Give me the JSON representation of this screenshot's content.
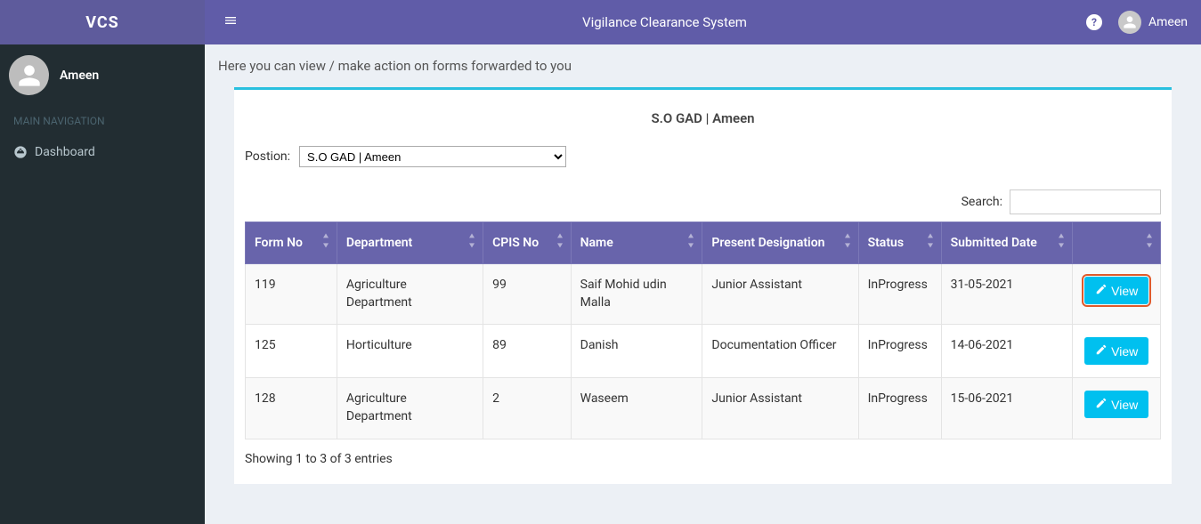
{
  "brand": "VCS",
  "user_name": "Ameen",
  "nav_header": "MAIN NAVIGATION",
  "nav": {
    "dashboard": "Dashboard"
  },
  "topbar": {
    "title": "Vigilance Clearance System",
    "help": "?",
    "user": "Ameen"
  },
  "subtitle": "Here you can view / make action on forms forwarded to you",
  "panel": {
    "title": "S.O GAD | Ameen",
    "position_label": "Postion:",
    "position_value": "S.O GAD | Ameen"
  },
  "search_label": "Search:",
  "table": {
    "columns": {
      "form_no": "Form No",
      "department": "Department",
      "cpis_no": "CPIS No",
      "name": "Name",
      "designation": "Present Designation",
      "status": "Status",
      "submitted": "Submitted Date",
      "action": ""
    },
    "col_widths": {
      "form_no": "94px",
      "department": "150px",
      "cpis_no": "90px",
      "name": "135px",
      "designation": "160px",
      "status": "85px",
      "submitted": "135px",
      "action": "90px"
    },
    "rows": [
      {
        "form_no": "119",
        "department": "Agriculture Department",
        "cpis_no": "99",
        "name": "Saif Mohid udin Malla",
        "designation": "Junior Assistant",
        "status": "InProgress",
        "submitted": "31-05-2021",
        "highlight": true
      },
      {
        "form_no": "125",
        "department": "Horticulture",
        "cpis_no": "89",
        "name": "Danish",
        "designation": "Documentation Officer",
        "status": "InProgress",
        "submitted": "14-06-2021",
        "highlight": false
      },
      {
        "form_no": "128",
        "department": "Agriculture Department",
        "cpis_no": "2",
        "name": "Waseem",
        "designation": "Junior Assistant",
        "status": "InProgress",
        "submitted": "15-06-2021",
        "highlight": false
      }
    ],
    "view_label": "View",
    "info": "Showing 1 to 3 of 3 entries"
  },
  "colors": {
    "brand_bg": "#5e5b9c",
    "topbar_bg": "#605ca8",
    "th_bg": "#6864ab",
    "panel_accent": "#29c0df",
    "view_btn": "#00c0ef",
    "highlight_outline": "#e05a2b",
    "sidebar_bg": "#222d32",
    "body_bg": "#ecf0f5"
  }
}
